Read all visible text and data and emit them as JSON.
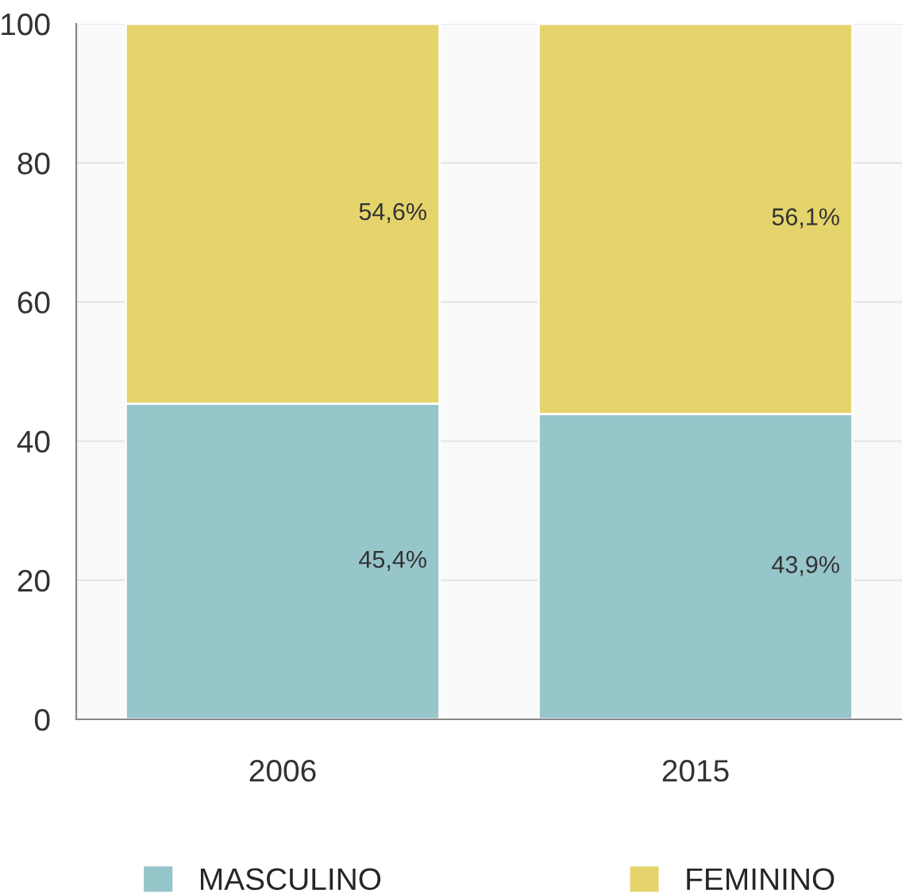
{
  "chart_data": {
    "type": "bar",
    "stacked": true,
    "categories": [
      "2006",
      "2015"
    ],
    "series": [
      {
        "name": "MASCULINO",
        "color": "#96c5ca",
        "values": [
          45.4,
          43.9
        ],
        "value_labels": [
          "45,4%",
          "43,9%"
        ]
      },
      {
        "name": "FEMININO",
        "color": "#e5d46c",
        "values": [
          54.6,
          56.1
        ],
        "value_labels": [
          "54,6%",
          "56,1%"
        ]
      }
    ],
    "ylim": [
      0,
      100
    ],
    "yticks": [
      0,
      20,
      40,
      60,
      80,
      100
    ],
    "grid": "y",
    "legend": "bottom"
  }
}
